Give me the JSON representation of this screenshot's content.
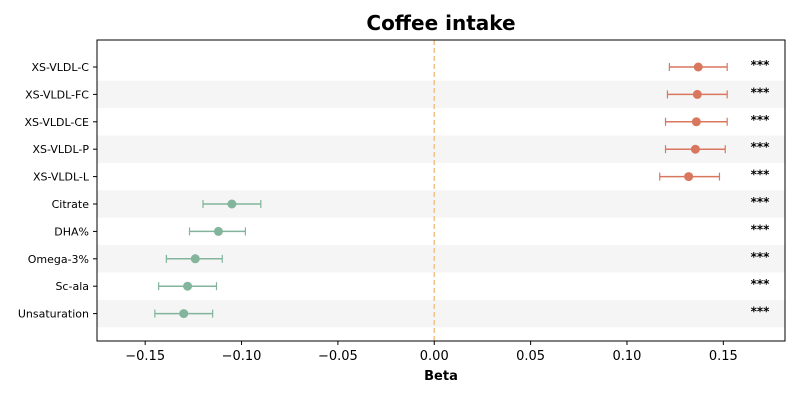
{
  "chart_data": {
    "type": "forest",
    "title": "Coffee intake",
    "xlabel": "Beta",
    "ylabel": "",
    "xlim": [
      -0.175,
      0.182
    ],
    "xticks": [
      -0.15,
      -0.1,
      -0.05,
      0.0,
      0.05,
      0.1,
      0.15
    ],
    "xtick_labels": [
      "−0.15",
      "−0.10",
      "−0.05",
      "0.00",
      "0.05",
      "0.10",
      "0.15"
    ],
    "reference_line": 0.0,
    "alternating_row_shading": true,
    "grid": false,
    "colors": {
      "positive": "#d9775e",
      "negative": "#82b59c",
      "reference_line": "#f0c48a",
      "row_shade": "#f5f5f5"
    },
    "rows": [
      {
        "label": "XS-VLDL-C",
        "estimate": 0.137,
        "ci_low": 0.122,
        "ci_high": 0.152,
        "significance": "***"
      },
      {
        "label": "XS-VLDL-FC",
        "estimate": 0.1365,
        "ci_low": 0.121,
        "ci_high": 0.152,
        "significance": "***"
      },
      {
        "label": "XS-VLDL-CE",
        "estimate": 0.136,
        "ci_low": 0.12,
        "ci_high": 0.152,
        "significance": "***"
      },
      {
        "label": "XS-VLDL-P",
        "estimate": 0.1355,
        "ci_low": 0.12,
        "ci_high": 0.151,
        "significance": "***"
      },
      {
        "label": "XS-VLDL-L",
        "estimate": 0.132,
        "ci_low": 0.117,
        "ci_high": 0.148,
        "significance": "***"
      },
      {
        "label": "Citrate",
        "estimate": -0.105,
        "ci_low": -0.12,
        "ci_high": -0.09,
        "significance": "***"
      },
      {
        "label": "DHA%",
        "estimate": -0.112,
        "ci_low": -0.127,
        "ci_high": -0.098,
        "significance": "***"
      },
      {
        "label": "Omega-3%",
        "estimate": -0.124,
        "ci_low": -0.139,
        "ci_high": -0.11,
        "significance": "***"
      },
      {
        "label": "Sc-ala",
        "estimate": -0.128,
        "ci_low": -0.143,
        "ci_high": -0.113,
        "significance": "***"
      },
      {
        "label": "Unsaturation",
        "estimate": -0.13,
        "ci_low": -0.145,
        "ci_high": -0.115,
        "significance": "***"
      }
    ]
  }
}
